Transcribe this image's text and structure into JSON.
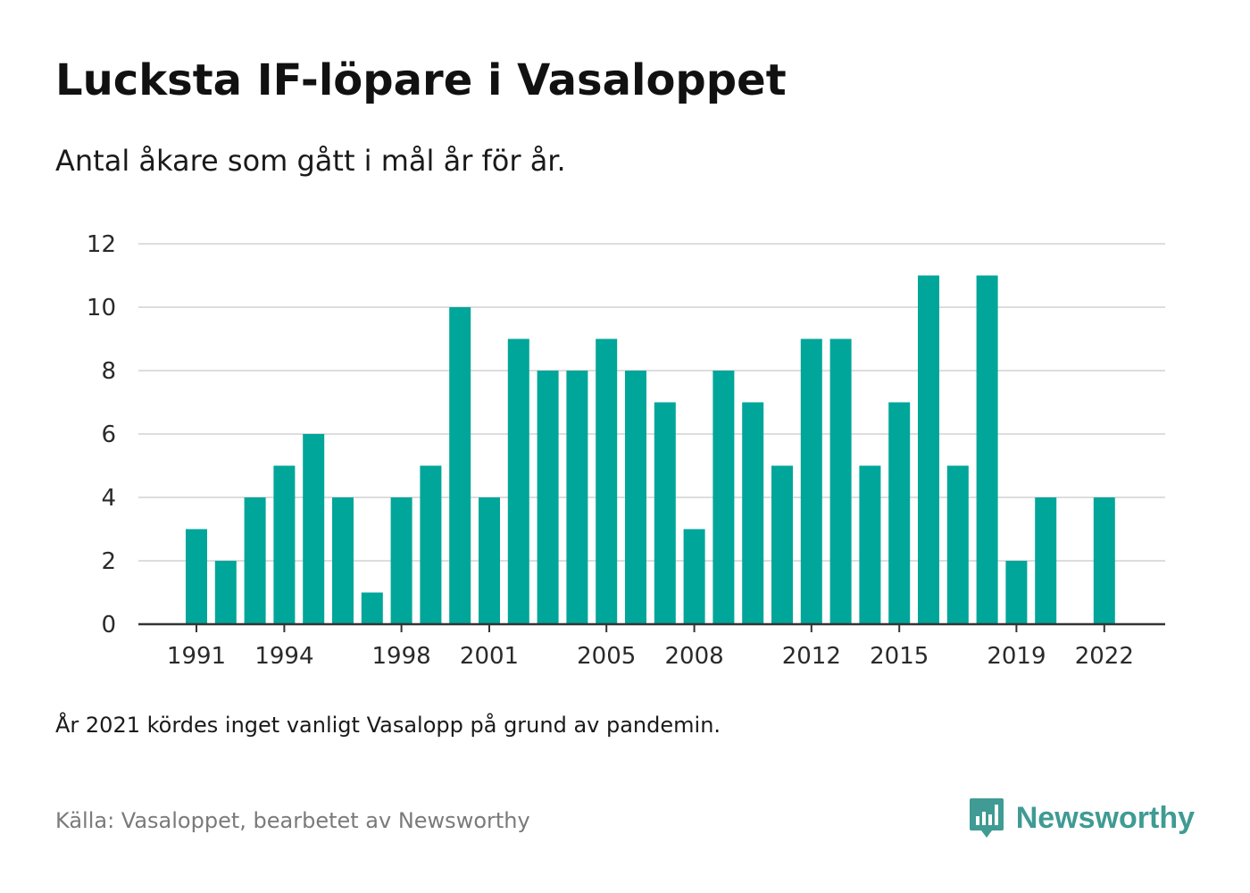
{
  "title": "Lucksta IF-löpare i Vasaloppet",
  "subtitle": "Antal åkare som gått i mål år för år.",
  "footnote": "År 2021 kördes inget vanligt Vasalopp på grund av pandemin.",
  "source": "Källa: Vasaloppet, bearbetet av Newsworthy",
  "brand": {
    "name": "Newsworthy",
    "logo_icon": "newsworthy-logo-icon",
    "color": "#3f9b93"
  },
  "colors": {
    "bar": "#00a69a",
    "grid": "#dddddd",
    "axis": "#333333"
  },
  "chart_data": {
    "type": "bar",
    "title": "Lucksta IF-löpare i Vasaloppet",
    "subtitle": "Antal åkare som gått i mål år för år.",
    "xlabel": "",
    "ylabel": "",
    "ylim": [
      0,
      12
    ],
    "yticks": [
      0,
      2,
      4,
      6,
      8,
      10,
      12
    ],
    "xticks": [
      "1991",
      "1994",
      "1998",
      "2001",
      "2005",
      "2008",
      "2012",
      "2015",
      "2019",
      "2022"
    ],
    "grid": true,
    "legend": "none",
    "categories": [
      "1991",
      "1992",
      "1993",
      "1994",
      "1995",
      "1996",
      "1997",
      "1998",
      "1999",
      "2000",
      "2001",
      "2002",
      "2003",
      "2004",
      "2005",
      "2006",
      "2007",
      "2008",
      "2009",
      "2010",
      "2011",
      "2012",
      "2013",
      "2014",
      "2015",
      "2016",
      "2017",
      "2018",
      "2019",
      "2020",
      "2021",
      "2022"
    ],
    "values": [
      3,
      2,
      4,
      5,
      6,
      4,
      1,
      4,
      5,
      10,
      4,
      9,
      8,
      8,
      9,
      8,
      7,
      3,
      8,
      7,
      5,
      9,
      9,
      5,
      7,
      11,
      5,
      11,
      2,
      4,
      null,
      4
    ]
  }
}
